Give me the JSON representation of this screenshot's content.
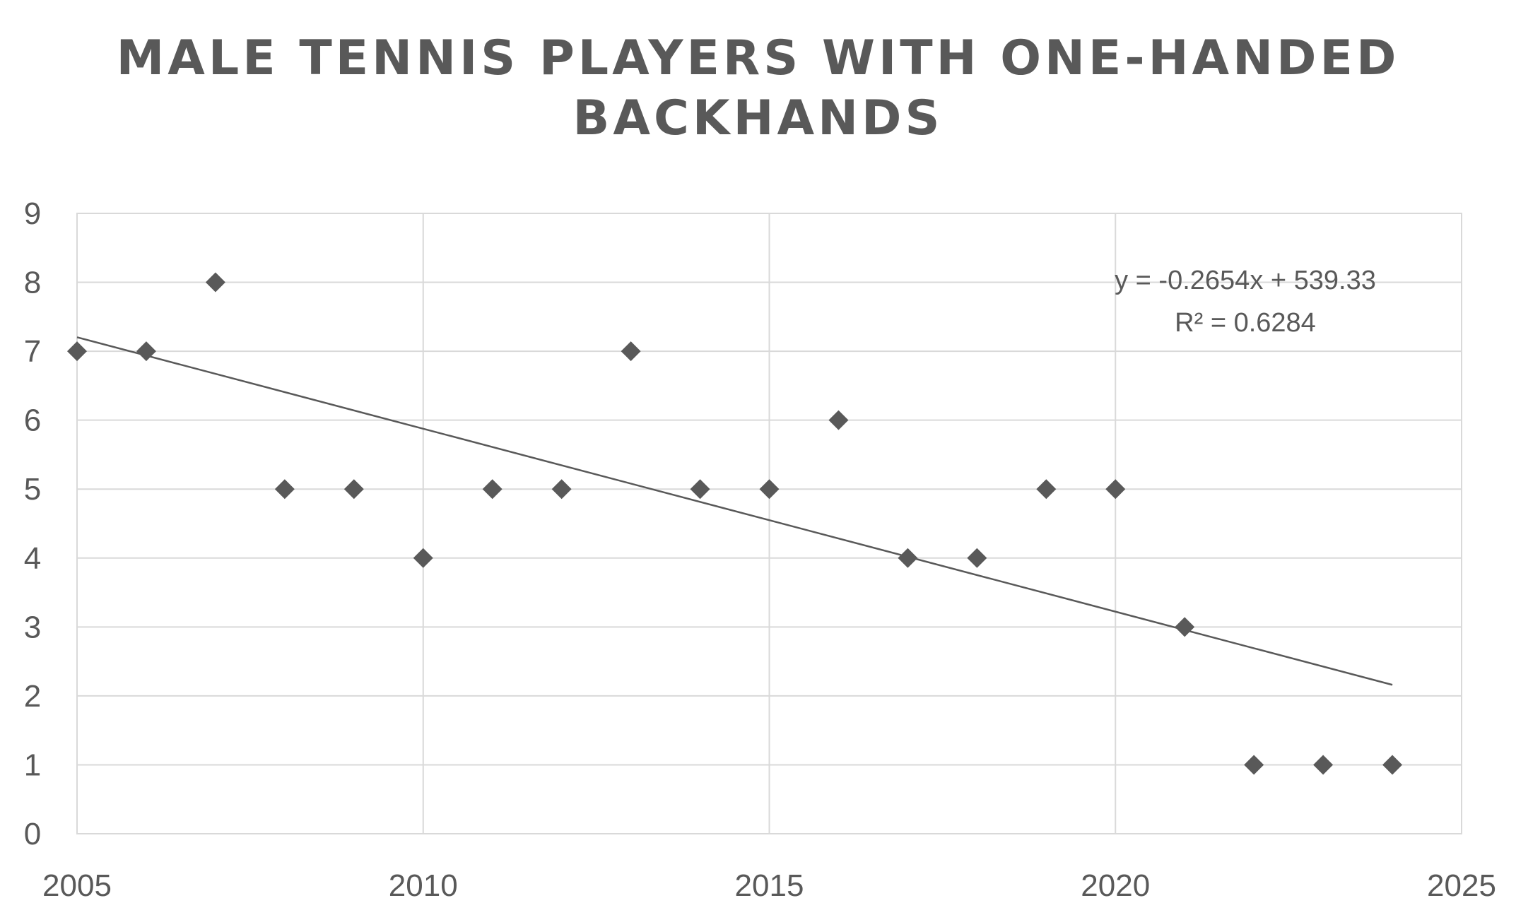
{
  "chart_data": {
    "type": "scatter",
    "title": "MALE TENNIS PLAYERS WITH ONE-HANDED BACKHANDS",
    "xlabel": "",
    "ylabel": "",
    "xlim": [
      2005,
      2025
    ],
    "ylim": [
      0,
      9
    ],
    "xticks": [
      2005,
      2010,
      2015,
      2020,
      2025
    ],
    "yticks": [
      0,
      1,
      2,
      3,
      4,
      5,
      6,
      7,
      8,
      9
    ],
    "grid": true,
    "series": [
      {
        "x": [
          2005,
          2006,
          2007,
          2008,
          2009,
          2010,
          2011,
          2012,
          2013,
          2014,
          2015,
          2016,
          2017,
          2018,
          2019,
          2020,
          2021,
          2022,
          2023,
          2024
        ],
        "y": [
          7,
          7,
          8,
          5,
          5,
          4,
          5,
          5,
          7,
          5,
          5,
          6,
          4,
          4,
          5,
          5,
          3,
          1,
          1,
          1
        ]
      }
    ],
    "trendline": {
      "type": "linear",
      "slope": -0.2654,
      "intercept": 539.33,
      "x_range": [
        2005,
        2024
      ],
      "equation": "y = -0.2654x + 539.33",
      "r_squared": "R² = 0.6284"
    },
    "colors": {
      "marker": "#595959",
      "line": "#595959",
      "grid": "#d9d9d9",
      "text": "#595959"
    }
  }
}
